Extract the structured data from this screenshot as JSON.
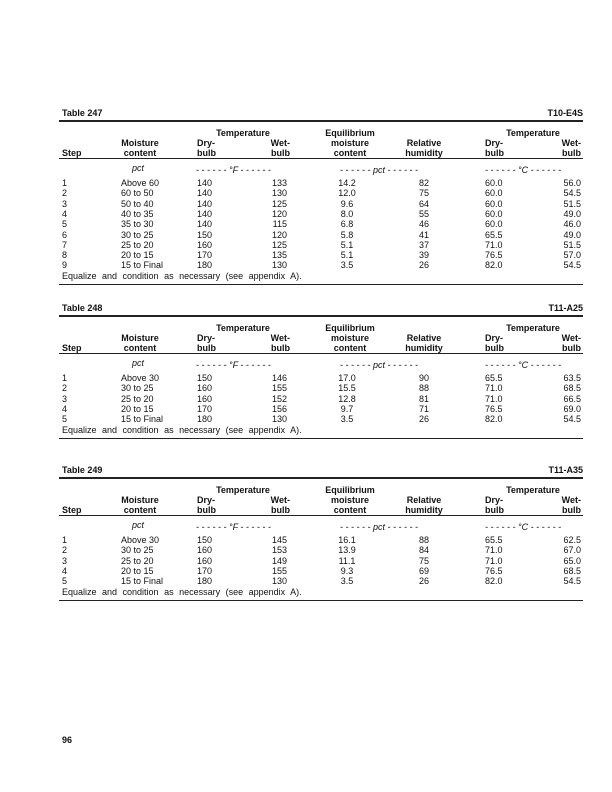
{
  "headers": {
    "step": "Step",
    "moisture_1": "Moisture",
    "moisture_2": "content",
    "temperature": "Temperature",
    "dry_1": "Dry-",
    "dry_2": "bulb",
    "wet_1": "Wet-",
    "wet_2": "bulb",
    "emc_1": "Equilibrium",
    "emc_2": "moisture",
    "emc_3": "content",
    "rh_1": "Relative",
    "rh_2": "humidity"
  },
  "units": {
    "moisture": "pct",
    "fahrenheit": "- - - - - - °F - - - - - -",
    "emc": "- - - - - - pct - - - - - -",
    "celsius": "- - - - - - °C - - - - - -"
  },
  "tables": [
    {
      "title": "Table 247",
      "code": "T10-E4S",
      "rows": [
        [
          "1",
          "Above 60",
          "140",
          "133",
          "14.2",
          "82",
          "60.0",
          "56.0"
        ],
        [
          "2",
          "60 to 50",
          "140",
          "130",
          "12.0",
          "75",
          "60.0",
          "54.5"
        ],
        [
          "3",
          "50 to 40",
          "140",
          "125",
          "9.6",
          "64",
          "60.0",
          "51.5"
        ],
        [
          "4",
          "40 to 35",
          "140",
          "120",
          "8.0",
          "55",
          "60.0",
          "49.0"
        ],
        [
          "5",
          "35 to 30",
          "140",
          "115",
          "6.8",
          "46",
          "60.0",
          "46.0"
        ],
        [
          "6",
          "30 to 25",
          "150",
          "120",
          "5.8",
          "41",
          "65.5",
          "49.0"
        ],
        [
          "7",
          "25 to 20",
          "160",
          "125",
          "5.1",
          "37",
          "71.0",
          "51.5"
        ],
        [
          "8",
          "20 to 15",
          "170",
          "135",
          "5.1",
          "39",
          "76.5",
          "57.0"
        ],
        [
          "9",
          "15 to Final",
          "180",
          "130",
          "3.5",
          "26",
          "82.0",
          "54.5"
        ]
      ],
      "note": "Equalize and condition as necessary (see appendix A)."
    },
    {
      "title": "Table 248",
      "code": "T11-A25",
      "rows": [
        [
          "1",
          "Above 30",
          "150",
          "146",
          "17.0",
          "90",
          "65.5",
          "63.5"
        ],
        [
          "2",
          "30 to 25",
          "160",
          "155",
          "15.5",
          "88",
          "71.0",
          "68.5"
        ],
        [
          "3",
          "25 to 20",
          "160",
          "152",
          "12.8",
          "81",
          "71.0",
          "66.5"
        ],
        [
          "4",
          "20 to 15",
          "170",
          "156",
          "9.7",
          "71",
          "76.5",
          "69.0"
        ],
        [
          "5",
          "15 to Final",
          "180",
          "130",
          "3.5",
          "26",
          "82.0",
          "54.5"
        ]
      ],
      "note": "Equalize and condition as necessary (see appendix A)."
    },
    {
      "title": "Table 249",
      "code": "T11-A35",
      "rows": [
        [
          "1",
          "Above 30",
          "150",
          "145",
          "16.1",
          "88",
          "65.5",
          "62.5"
        ],
        [
          "2",
          "30 to 25",
          "160",
          "153",
          "13.9",
          "84",
          "71.0",
          "67.0"
        ],
        [
          "3",
          "25 to 20",
          "160",
          "149",
          "11.1",
          "75",
          "71.0",
          "65.0"
        ],
        [
          "4",
          "20 to 15",
          "170",
          "155",
          "9.3",
          "69",
          "76.5",
          "68.5"
        ],
        [
          "5",
          "15 to Final",
          "180",
          "130",
          "3.5",
          "26",
          "82.0",
          "54.5"
        ]
      ],
      "note": "Equalize and condition as necessary (see appendix A)."
    }
  ],
  "page_number": "96"
}
